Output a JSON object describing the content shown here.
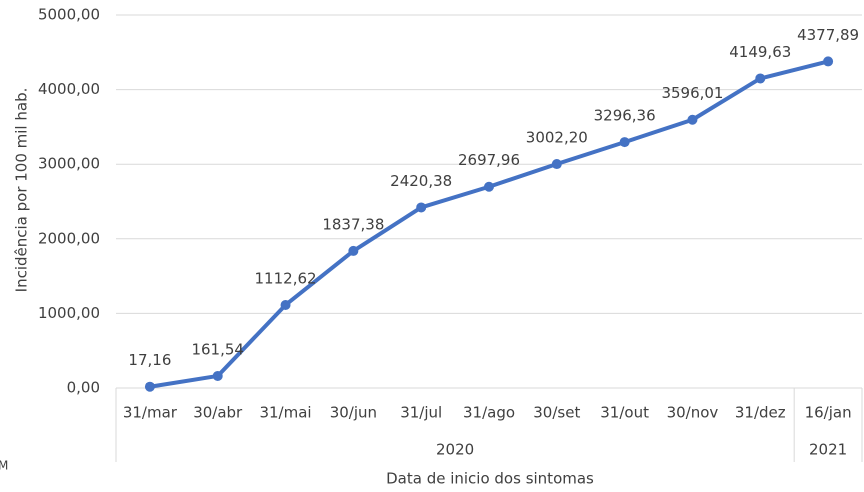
{
  "chart_data": {
    "type": "line",
    "y_label": "Incidência por 100 mil hab.",
    "x_label": "Data de inicio dos sintomas",
    "annotation": "M",
    "categories": [
      "31/mar",
      "30/abr",
      "31/mai",
      "30/jun",
      "31/jul",
      "31/ago",
      "30/set",
      "31/out",
      "30/nov",
      "31/dez",
      "16/jan"
    ],
    "groups": [
      {
        "label": "2020",
        "count": 10
      },
      {
        "label": "2021",
        "count": 1
      }
    ],
    "values": [
      17.16,
      161.54,
      1112.62,
      1837.38,
      2420.38,
      2697.96,
      3002.2,
      3296.36,
      3596.01,
      4149.63,
      4377.89
    ],
    "value_labels": [
      "17,16",
      "161,54",
      "1112,62",
      "1837,38",
      "2420,38",
      "2697,96",
      "3002,20",
      "3296,36",
      "3596,01",
      "4149,63",
      "4377,89"
    ],
    "color": "#4472c4",
    "ylim": [
      0,
      5000
    ],
    "yticks": [
      {
        "value": 0,
        "label": "0,00"
      },
      {
        "value": 1000,
        "label": "1000,00"
      },
      {
        "value": 2000,
        "label": "2000,00"
      },
      {
        "value": 3000,
        "label": "3000,00"
      },
      {
        "value": 4000,
        "label": "4000,00"
      },
      {
        "value": 5000,
        "label": "5000,00"
      }
    ],
    "grid": true
  }
}
